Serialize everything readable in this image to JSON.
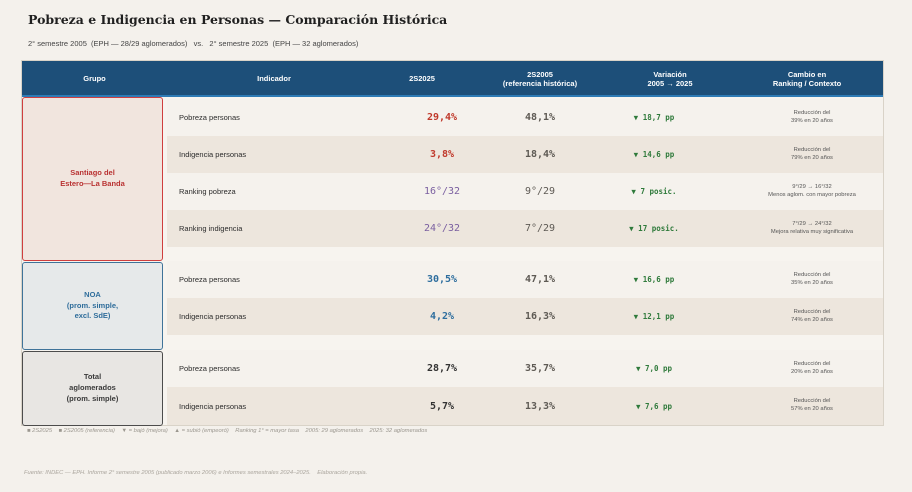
{
  "title": "Pobreza e Indigencia en Personas — Comparación Histórica",
  "subtitle": "2° semestre 2005  (EPH — 28/29 aglomerados)   vs.   2° semestre 2025  (EPH — 32 aglomerados)",
  "header": {
    "grupo": "Grupo",
    "indicador": "Indicador",
    "s2025": "2S2025",
    "s2005": "2S2005",
    "s2005_sub": "(referencia histórica)",
    "variacion": "Variación",
    "variacion_sub": "2005 → 2025",
    "cambio": "Cambio en",
    "cambio_sub": "Ranking / Contexto"
  },
  "groups": {
    "sde": {
      "line1": "Santiago del",
      "line2": "Estero—La Banda"
    },
    "noa": {
      "line1": "NOA",
      "line2": "(prom. simple,",
      "line3": "excl. SdE)"
    },
    "total": {
      "line1": "Total",
      "line2": "aglomerados",
      "line3": "(prom. simple)"
    }
  },
  "colors": {
    "sde": "#c0392b",
    "noa": "#2e6e9e",
    "total": "#333333",
    "ranking": "#7a5fa0",
    "improve": "#2f7a3b"
  },
  "rows": [
    {
      "indicador": "Pobreza personas",
      "v2025": "29,4%",
      "v2005": "48,1%",
      "variacion": "▼ 18,7 pp",
      "cambio1": "Reducción del",
      "cambio2": "39% en 20 años"
    },
    {
      "indicador": "Indigencia personas",
      "v2025": "3,8%",
      "v2005": "18,4%",
      "variacion": "▼ 14,6 pp",
      "cambio1": "Reducción del",
      "cambio2": "79% en 20 años"
    },
    {
      "indicador": "Ranking pobreza",
      "v2025": "16°/32",
      "v2005": "9°/29",
      "variacion": "▼ 7 posic.",
      "cambio1": "9°/29  → 16°/32",
      "cambio2": "Menos aglom. con mayor pobreza"
    },
    {
      "indicador": "Ranking indigencia",
      "v2025": "24°/32",
      "v2005": "7°/29",
      "variacion": "▼ 17 posic.",
      "cambio1": "7°/29  → 24°/32",
      "cambio2": "Mejora relativa muy significativa"
    },
    {
      "indicador": "Pobreza personas",
      "v2025": "30,5%",
      "v2005": "47,1%",
      "variacion": "▼ 16,6 pp",
      "cambio1": "Reducción del",
      "cambio2": "35% en 20 años"
    },
    {
      "indicador": "Indigencia personas",
      "v2025": "4,2%",
      "v2005": "16,3%",
      "variacion": "▼ 12,1 pp",
      "cambio1": "Reducción del",
      "cambio2": "74% en 20 años"
    },
    {
      "indicador": "Pobreza personas",
      "v2025": "28,7%",
      "v2005": "35,7%",
      "variacion": "▼ 7,0 pp",
      "cambio1": "Reducción del",
      "cambio2": "20% en 20 años"
    },
    {
      "indicador": "Indigencia personas",
      "v2025": "5,7%",
      "v2005": "13,3%",
      "variacion": "▼ 7,6 pp",
      "cambio1": "Reducción del",
      "cambio2": "57% en 20 años"
    }
  ],
  "legend": "■ 2S2025    ■ 2S2005 (referencia)    ▼ = bajó (mejora)    ▲ = subió (empeoró)    Ranking 1° = mayor tasa    2005: 29 aglomerados    2025: 32 aglomerados",
  "footer": "Fuente: INDEC — EPH. Informe 2° semestre 2005 (publicado marzo 2006) e Informes semestrales 2024–2025.    Elaboración propia."
}
